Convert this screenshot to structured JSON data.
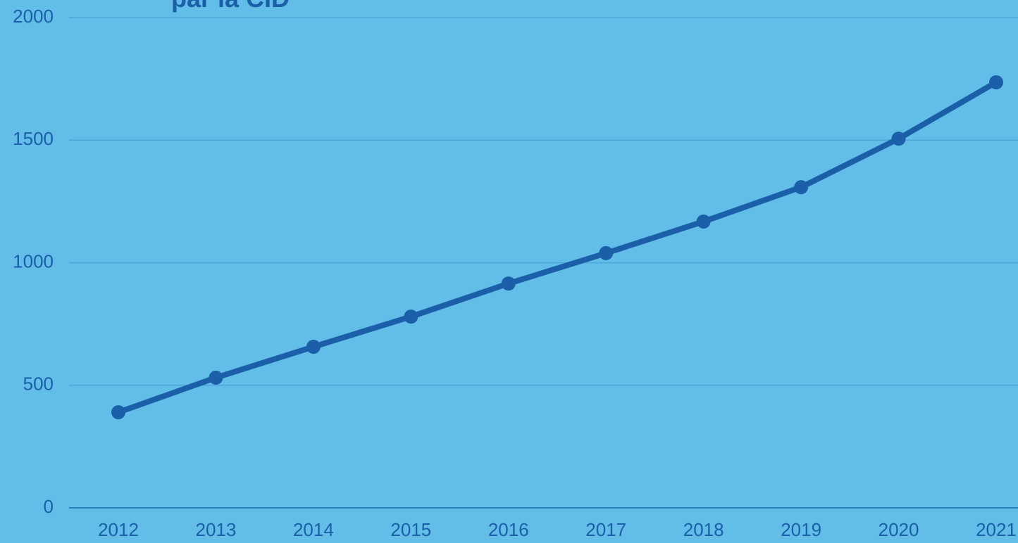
{
  "chart_data": {
    "type": "line",
    "title": "par la CID",
    "categories": [
      "2012",
      "2013",
      "2014",
      "2015",
      "2016",
      "2017",
      "2018",
      "2019",
      "2020",
      "2021"
    ],
    "series": [
      {
        "name": "CID",
        "color": "#1a5fa8",
        "values": [
          390,
          531,
          657,
          780,
          915,
          1039,
          1168,
          1308,
          1506,
          1736
        ]
      }
    ],
    "ylim": [
      0,
      2000
    ],
    "yticks": [
      0,
      500,
      1000,
      1500,
      2000
    ],
    "grid": true
  }
}
